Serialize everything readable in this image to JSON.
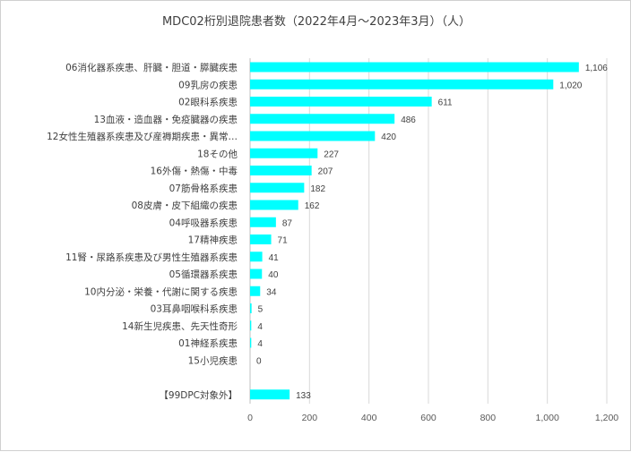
{
  "chart_data": {
    "type": "bar",
    "orientation": "horizontal",
    "title": "MDC02桁別退院患者数（2022年4月～2023年3月）（人）",
    "categories": [
      "06消化器系疾患、肝臓・胆道・膵臓疾患",
      "09乳房の疾患",
      "02眼科系疾患",
      "13血液・造血器・免疫臓器の疾患",
      "12女性生殖器系疾患及び産褥期疾患・異常…",
      "18その他",
      "16外傷・熱傷・中毒",
      "07筋骨格系疾患",
      "08皮膚・皮下組織の疾患",
      "04呼吸器系疾患",
      "17精神疾患",
      "11腎・尿路系疾患及び男性生殖器系疾患",
      "05循環器系疾患",
      "10内分泌・栄養・代謝に関する疾患",
      "03耳鼻咽喉科系疾患",
      "14新生児疾患、先天性奇形",
      "01神経系疾患",
      "15小児疾患",
      "",
      "【99DPC対象外】"
    ],
    "values": [
      1106,
      1020,
      611,
      486,
      420,
      227,
      207,
      182,
      162,
      87,
      71,
      41,
      40,
      34,
      5,
      4,
      4,
      0,
      null,
      133
    ],
    "value_labels": [
      "1,106",
      "1,020",
      "611",
      "486",
      "420",
      "227",
      "207",
      "182",
      "162",
      "87",
      "71",
      "41",
      "40",
      "34",
      "5",
      "4",
      "4",
      "0",
      "",
      "133"
    ],
    "xlim": [
      0,
      1200
    ],
    "xticks": [
      0,
      200,
      400,
      600,
      800,
      1000,
      1200
    ],
    "xtick_labels": [
      "0",
      "200",
      "400",
      "600",
      "800",
      "1,000",
      "1,200"
    ],
    "grid": true,
    "bar_color": "#00FFFF",
    "xlabel": "",
    "ylabel": ""
  }
}
